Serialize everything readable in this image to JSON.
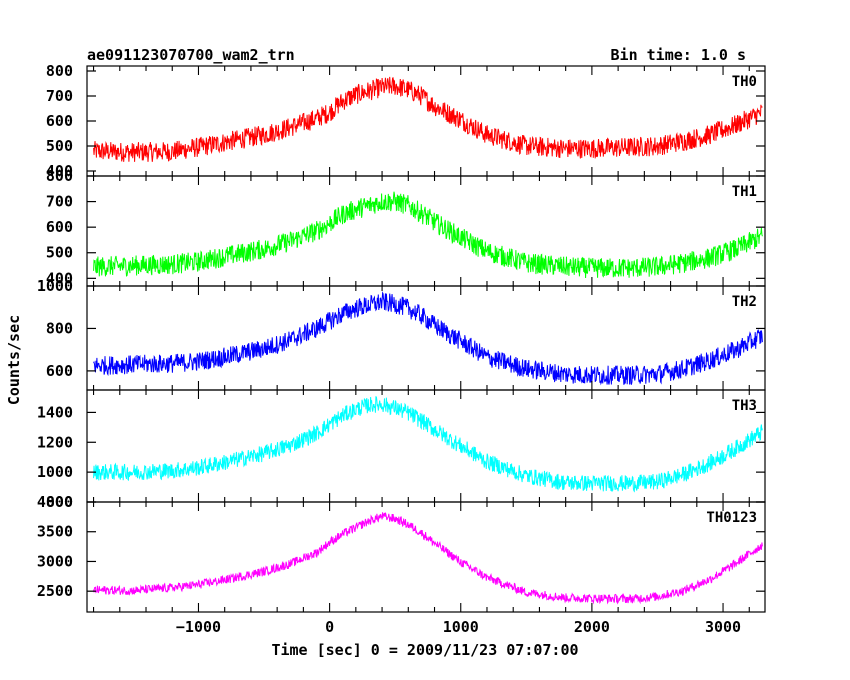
{
  "header": {
    "obs_id": "ae091123070700_wam2_trn",
    "bin_time": "Bin time: 1.0 s"
  },
  "axes": {
    "xlabel": "Time [sec] 0 = 2009/11/23 07:07:00",
    "ylabel": "Counts/sec"
  },
  "chart_data": {
    "type": "line",
    "x_range": [
      -1850,
      3320
    ],
    "x_ticks": [
      -1000,
      0,
      1000,
      2000,
      3000
    ],
    "x_tick_labels": [
      "−1000",
      "0",
      "1000",
      "2000",
      "3000"
    ],
    "grid": false,
    "panels": [
      {
        "name": "TH0",
        "color": "#ff0000",
        "ylim": [
          380,
          820
        ],
        "yticks": [
          400,
          500,
          600,
          700,
          800
        ],
        "x": [
          -1800,
          -1500,
          -1200,
          -1000,
          -800,
          -500,
          -300,
          -100,
          0,
          100,
          200,
          300,
          400,
          500,
          600,
          700,
          800,
          1000,
          1200,
          1500,
          1800,
          2000,
          2300,
          2500,
          2700,
          2900,
          3100,
          3300
        ],
        "y": [
          480,
          475,
          478,
          495,
          515,
          545,
          575,
          610,
          635,
          680,
          705,
          720,
          735,
          740,
          725,
          700,
          660,
          605,
          545,
          500,
          490,
          490,
          495,
          500,
          520,
          545,
          585,
          635
        ],
        "noise": 40
      },
      {
        "name": "TH1",
        "color": "#00ff00",
        "ylim": [
          370,
          800
        ],
        "yticks": [
          400,
          500,
          600,
          700,
          800
        ],
        "x": [
          -1800,
          -1500,
          -1200,
          -1000,
          -800,
          -500,
          -300,
          -100,
          0,
          100,
          200,
          300,
          400,
          500,
          600,
          700,
          800,
          1000,
          1200,
          1500,
          1800,
          2000,
          2300,
          2500,
          2700,
          2900,
          3100,
          3300
        ],
        "y": [
          445,
          450,
          455,
          465,
          485,
          515,
          545,
          585,
          615,
          650,
          670,
          685,
          700,
          700,
          685,
          655,
          620,
          560,
          505,
          460,
          445,
          440,
          440,
          445,
          460,
          480,
          515,
          565
        ],
        "noise": 40
      },
      {
        "name": "TH2",
        "color": "#0000ff",
        "ylim": [
          510,
          1000
        ],
        "yticks": [
          600,
          800,
          1000
        ],
        "x": [
          -1800,
          -1500,
          -1200,
          -1000,
          -800,
          -500,
          -300,
          -100,
          0,
          100,
          200,
          300,
          400,
          500,
          600,
          700,
          800,
          1000,
          1200,
          1500,
          1800,
          2000,
          2300,
          2500,
          2700,
          2900,
          3100,
          3300
        ],
        "y": [
          625,
          630,
          635,
          645,
          665,
          705,
          745,
          800,
          835,
          870,
          895,
          910,
          925,
          915,
          895,
          860,
          815,
          740,
          665,
          610,
          585,
          580,
          580,
          585,
          610,
          650,
          700,
          765
        ],
        "noise": 45
      },
      {
        "name": "TH3",
        "color": "#00ffff",
        "ylim": [
          800,
          1550
        ],
        "yticks": [
          800,
          1000,
          1200,
          1400
        ],
        "x": [
          -1800,
          -1500,
          -1200,
          -1000,
          -800,
          -500,
          -300,
          -100,
          0,
          100,
          200,
          300,
          400,
          500,
          600,
          700,
          800,
          1000,
          1200,
          1500,
          1800,
          2000,
          2300,
          2500,
          2700,
          2900,
          3100,
          3300
        ],
        "y": [
          1000,
          1000,
          1010,
          1030,
          1065,
          1125,
          1180,
          1260,
          1320,
          1380,
          1420,
          1450,
          1455,
          1430,
          1395,
          1345,
          1285,
          1175,
          1070,
          975,
          930,
          925,
          925,
          935,
          985,
          1060,
          1160,
          1270
        ],
        "noise": 55
      },
      {
        "name": "TH0123",
        "color": "#ff00ff",
        "ylim": [
          2150,
          4000
        ],
        "yticks": [
          2500,
          3000,
          3500,
          4000
        ],
        "x": [
          -1800,
          -1500,
          -1200,
          -1000,
          -800,
          -500,
          -300,
          -100,
          0,
          100,
          200,
          300,
          400,
          500,
          600,
          700,
          800,
          1000,
          1200,
          1500,
          1800,
          2000,
          2300,
          2500,
          2700,
          2900,
          3100,
          3300
        ],
        "y": [
          2520,
          2510,
          2560,
          2610,
          2690,
          2830,
          2960,
          3150,
          3320,
          3460,
          3570,
          3680,
          3760,
          3720,
          3620,
          3480,
          3310,
          2990,
          2730,
          2480,
          2390,
          2380,
          2370,
          2410,
          2510,
          2700,
          2970,
          3280
        ],
        "noise": 75
      }
    ]
  }
}
